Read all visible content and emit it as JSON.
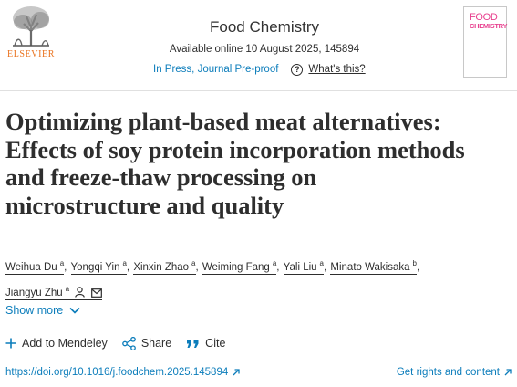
{
  "header": {
    "publisher": "ELSEVIER",
    "journal_title": "Food Chemistry",
    "available_online": "Available online 10 August 2025, 145894",
    "status_link": "In Press, Journal Pre-proof",
    "whats_this": "What's this?",
    "cover": {
      "line1": "FOOD",
      "line2": "CHEMISTRY"
    }
  },
  "article": {
    "title_lines": [
      "Optimizing plant-based meat alternatives:",
      "Effects of soy protein incorporation methods",
      "and freeze-thaw processing on",
      "microstructure and quality"
    ],
    "authors": [
      {
        "name": "Weihua Du",
        "sup": "a"
      },
      {
        "name": "Yongqi Yin",
        "sup": "a"
      },
      {
        "name": "Xinxin Zhao",
        "sup": "a"
      },
      {
        "name": "Weiming Fang",
        "sup": "a"
      },
      {
        "name": "Yali Liu",
        "sup": "a"
      },
      {
        "name": "Minato Wakisaka",
        "sup": "b"
      },
      {
        "name": "Jiangyu Zhu",
        "sup": "a"
      }
    ],
    "show_more": "Show more"
  },
  "actions": {
    "add_mendeley": "Add to Mendeley",
    "share": "Share",
    "cite": "Cite"
  },
  "links": {
    "doi": "https://doi.org/10.1016/j.foodchem.2025.145894",
    "rights": "Get rights and content"
  },
  "colors": {
    "link": "#0c7dbb",
    "elsevier_orange": "#e9711c",
    "cover_pink": "#e8408e",
    "text": "#2e2e2e"
  },
  "icons": [
    "elsevier-tree-logo",
    "question-circle-icon",
    "person-icon",
    "mail-icon",
    "chevron-down-icon",
    "plus-icon",
    "share-icon",
    "quote-icon",
    "external-arrow-icon"
  ]
}
